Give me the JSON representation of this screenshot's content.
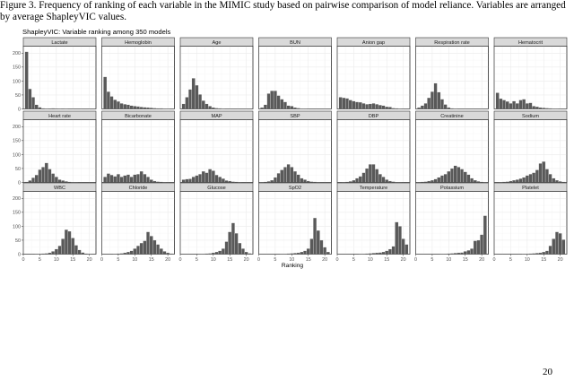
{
  "document": {
    "caption": "Figure 3. Frequency of ranking of each variable in the MIMIC study based on pairwise comparison of model reliance. Variables are arranged by average ShapleyVIC values.",
    "page_number": "20"
  },
  "chart_data": {
    "type": "bar",
    "title": "ShapleyVIC: Variable ranking among 350 models",
    "xlabel": "Ranking",
    "ylabel": "",
    "xlim": [
      0,
      22
    ],
    "ylim": [
      0,
      225
    ],
    "x_ticks": [
      0,
      5,
      10,
      15,
      20
    ],
    "y_ticks": [
      0,
      50,
      100,
      150,
      200
    ],
    "grid": true,
    "facets_layout": "3 rows x 7 columns",
    "bar_color": "#595959",
    "x": [
      1,
      2,
      3,
      4,
      5,
      6,
      7,
      8,
      9,
      10,
      11,
      12,
      13,
      14,
      15,
      16,
      17,
      18,
      19,
      20,
      21
    ],
    "series": [
      {
        "name": "Lactate",
        "values": [
          205,
          72,
          42,
          15,
          6,
          2,
          1,
          0,
          2,
          0,
          1,
          0,
          1,
          0,
          0,
          0,
          0,
          0,
          0,
          0,
          0
        ]
      },
      {
        "name": "Hemoglobin",
        "values": [
          115,
          62,
          45,
          33,
          27,
          20,
          17,
          15,
          12,
          10,
          9,
          7,
          6,
          5,
          4,
          3,
          2,
          2,
          1,
          1,
          0
        ]
      },
      {
        "name": "Age",
        "values": [
          18,
          42,
          70,
          110,
          85,
          52,
          30,
          18,
          10,
          5,
          3,
          2,
          1,
          0,
          0,
          0,
          0,
          0,
          0,
          0,
          0
        ]
      },
      {
        "name": "BUN",
        "values": [
          5,
          15,
          55,
          65,
          65,
          48,
          35,
          25,
          12,
          10,
          5,
          3,
          1,
          1,
          0,
          0,
          0,
          0,
          0,
          0,
          0
        ]
      },
      {
        "name": "Anion gap",
        "values": [
          42,
          40,
          38,
          32,
          28,
          25,
          24,
          20,
          17,
          18,
          20,
          17,
          14,
          12,
          8,
          7,
          3,
          2,
          1,
          0,
          0
        ]
      },
      {
        "name": "Respiration rate",
        "values": [
          5,
          12,
          20,
          40,
          62,
          92,
          60,
          35,
          16,
          5,
          2,
          1,
          0,
          0,
          0,
          0,
          0,
          0,
          0,
          0,
          0
        ]
      },
      {
        "name": "Hematocrit",
        "values": [
          58,
          37,
          32,
          27,
          20,
          28,
          20,
          32,
          35,
          20,
          22,
          10,
          8,
          5,
          4,
          3,
          2,
          1,
          1,
          0,
          0
        ]
      },
      {
        "name": "Heart rate",
        "values": [
          2,
          7,
          17,
          27,
          46,
          55,
          70,
          48,
          32,
          20,
          10,
          7,
          4,
          2,
          1,
          1,
          0,
          0,
          0,
          0,
          0
        ]
      },
      {
        "name": "Bicarbonate",
        "values": [
          20,
          32,
          27,
          22,
          30,
          20,
          25,
          28,
          20,
          28,
          30,
          40,
          30,
          20,
          10,
          5,
          3,
          2,
          1,
          0,
          0
        ]
      },
      {
        "name": "MAP",
        "values": [
          10,
          12,
          13,
          20,
          25,
          30,
          40,
          35,
          48,
          42,
          27,
          20,
          14,
          7,
          5,
          3,
          2,
          1,
          0,
          0,
          0
        ]
      },
      {
        "name": "SBP",
        "values": [
          1,
          2,
          4,
          8,
          18,
          33,
          45,
          55,
          65,
          55,
          40,
          28,
          15,
          10,
          5,
          3,
          2,
          1,
          0,
          0,
          0
        ]
      },
      {
        "name": "DBP",
        "values": [
          0,
          1,
          2,
          4,
          8,
          15,
          22,
          35,
          50,
          65,
          65,
          48,
          30,
          20,
          10,
          5,
          3,
          1,
          1,
          0,
          0
        ]
      },
      {
        "name": "Creatinine",
        "values": [
          1,
          2,
          3,
          5,
          8,
          12,
          18,
          25,
          30,
          40,
          50,
          60,
          55,
          48,
          38,
          28,
          15,
          8,
          4,
          2,
          1
        ]
      },
      {
        "name": "Sodium",
        "values": [
          0,
          1,
          2,
          3,
          5,
          8,
          10,
          14,
          18,
          25,
          30,
          35,
          45,
          68,
          75,
          48,
          30,
          15,
          8,
          4,
          2
        ]
      },
      {
        "name": "WBC",
        "values": [
          0,
          0,
          0,
          1,
          1,
          2,
          3,
          5,
          10,
          18,
          30,
          55,
          88,
          82,
          58,
          32,
          15,
          6,
          2,
          1,
          0
        ]
      },
      {
        "name": "Chloride",
        "values": [
          0,
          0,
          0,
          1,
          2,
          3,
          5,
          8,
          12,
          20,
          30,
          40,
          48,
          80,
          65,
          50,
          35,
          20,
          10,
          5,
          2
        ]
      },
      {
        "name": "Glucose",
        "values": [
          0,
          0,
          0,
          0,
          0,
          1,
          1,
          2,
          3,
          5,
          8,
          12,
          20,
          45,
          80,
          112,
          75,
          40,
          20,
          8,
          3
        ]
      },
      {
        "name": "SpO2",
        "values": [
          0,
          0,
          0,
          0,
          0,
          0,
          1,
          1,
          2,
          3,
          4,
          5,
          8,
          12,
          20,
          55,
          130,
          85,
          50,
          25,
          8
        ]
      },
      {
        "name": "Temperature",
        "values": [
          0,
          0,
          0,
          0,
          0,
          0,
          1,
          1,
          2,
          3,
          4,
          5,
          6,
          8,
          12,
          18,
          28,
          115,
          100,
          55,
          35
        ]
      },
      {
        "name": "Potassium",
        "values": [
          0,
          0,
          0,
          0,
          0,
          0,
          0,
          1,
          1,
          2,
          3,
          4,
          5,
          6,
          10,
          14,
          20,
          48,
          50,
          70,
          138
        ]
      },
      {
        "name": "Platelet",
        "values": [
          0,
          0,
          0,
          0,
          0,
          0,
          0,
          0,
          1,
          1,
          2,
          3,
          4,
          5,
          8,
          12,
          30,
          55,
          80,
          75,
          52
        ]
      }
    ]
  }
}
